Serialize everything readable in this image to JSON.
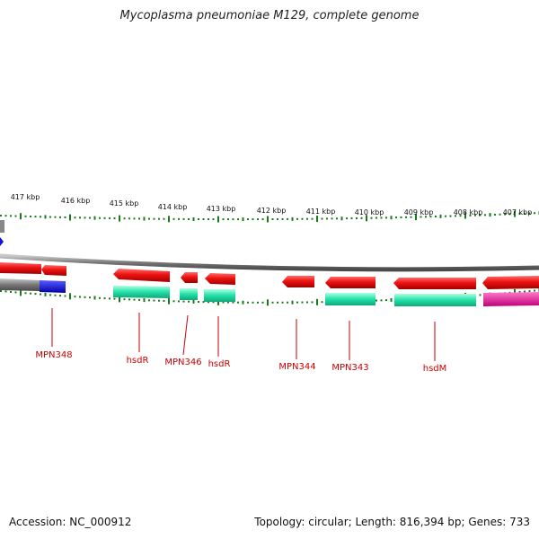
{
  "title": "Mycoplasma pneumoniae M129, complete genome",
  "footer": {
    "accession": "Accession: NC_000912",
    "topology": "Topology: circular; Length: 816,394 bp; Genes: 733"
  },
  "colors": {
    "backbone": "#8a8a8a",
    "cds": "#ee1111",
    "rna_gene": "#22ddaa",
    "other_a": "#1111dd",
    "other_b": "#dd1188",
    "tick": "#1a7a1a",
    "label": "#cc0000"
  },
  "ticks": [
    "417 kbp",
    "416 kbp",
    "415 kbp",
    "414 kbp",
    "413 kbp",
    "412 kbp",
    "411 kbp",
    "410 kbp",
    "409 kbp",
    "408 kbp",
    "407 kbp"
  ],
  "gene_labels": [
    "MPN348",
    "hsdR",
    "MPN346",
    "hsdR",
    "MPN344",
    "MPN343",
    "hsdM"
  ]
}
